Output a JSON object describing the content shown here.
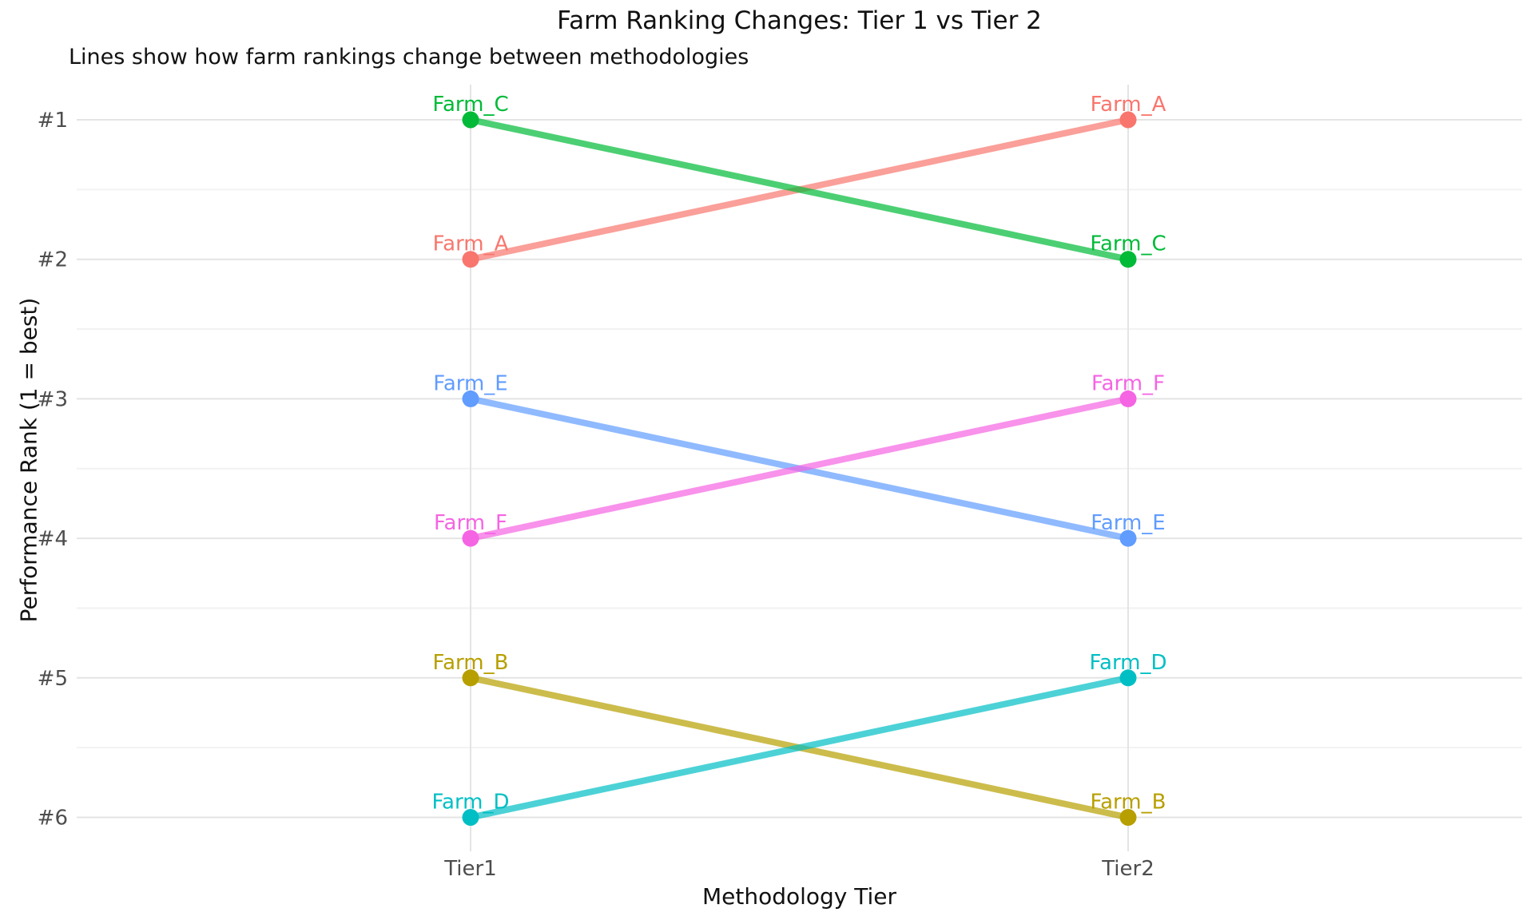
{
  "chart_data": {
    "type": "line",
    "subtype": "slope-chart",
    "title": "Farm Ranking Changes: Tier 1 vs Tier 2",
    "subtitle": "Lines show how farm rankings change between methodologies",
    "xlabel": "Methodology Tier",
    "ylabel": "Performance Rank (1 = best)",
    "categories": [
      "Tier1",
      "Tier2"
    ],
    "ytick_labels": [
      "#1",
      "#2",
      "#3",
      "#4",
      "#5",
      "#6"
    ],
    "yticks": [
      1,
      2,
      3,
      4,
      5,
      6
    ],
    "ylim": [
      0.75,
      6.25
    ],
    "y_axis_inverted": true,
    "grid_major": true,
    "grid_minor": true,
    "legend": "none",
    "point_labels_shown": true,
    "series": [
      {
        "name": "Farm_A",
        "color": "#F8766D",
        "values": [
          2,
          1
        ]
      },
      {
        "name": "Farm_B",
        "color": "#B79F00",
        "values": [
          5,
          6
        ]
      },
      {
        "name": "Farm_C",
        "color": "#00BA38",
        "values": [
          1,
          2
        ]
      },
      {
        "name": "Farm_D",
        "color": "#00BFC4",
        "values": [
          6,
          5
        ]
      },
      {
        "name": "Farm_E",
        "color": "#619CFF",
        "values": [
          3,
          4
        ]
      },
      {
        "name": "Farm_F",
        "color": "#F564E3",
        "values": [
          4,
          3
        ]
      }
    ],
    "style": {
      "background_color": "#ffffff",
      "major_grid_color": "#e4e4e4",
      "minor_grid_color": "#f2f2f2",
      "tick_label_color": "#4d4d4d",
      "title_color": "#111111",
      "axis_label_color": "#111111"
    }
  }
}
